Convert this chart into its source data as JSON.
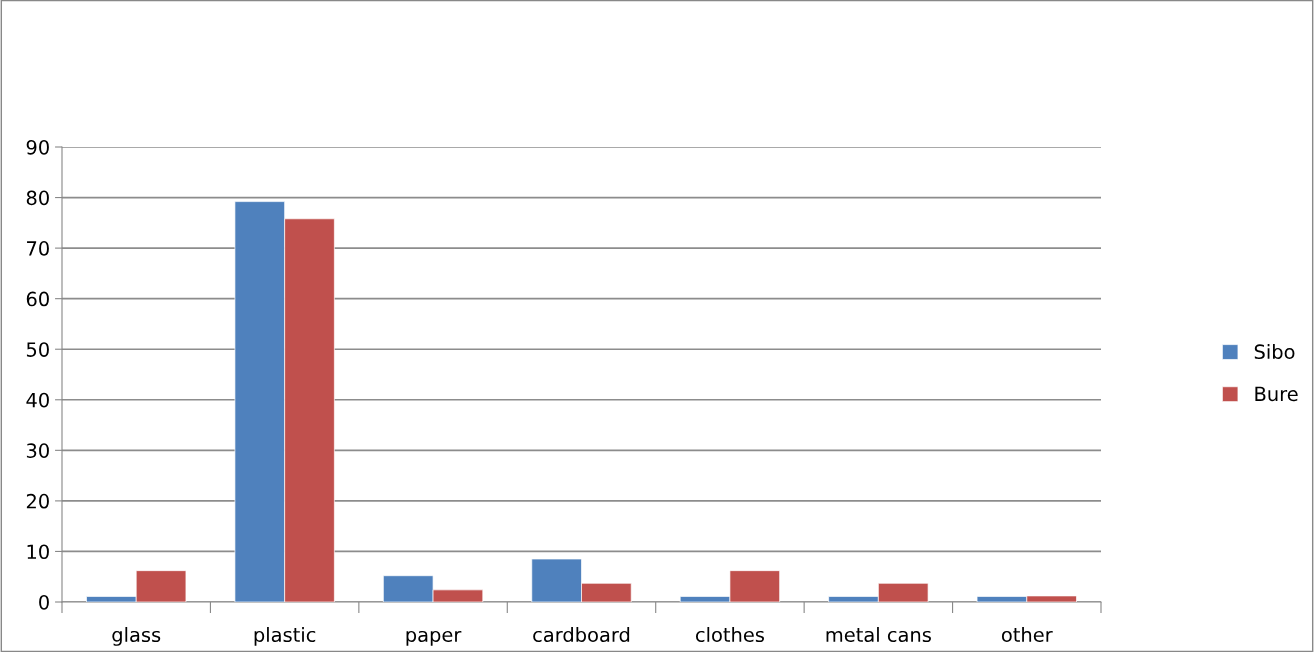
{
  "chart_data": {
    "type": "bar",
    "categories": [
      "glass",
      "plastic",
      "paper",
      "cardboard",
      "clothes",
      "metal cans",
      "other"
    ],
    "series": [
      {
        "name": "Sibo",
        "color": "#4f81bd",
        "values": [
          1.1,
          79.2,
          5.2,
          8.5,
          1.1,
          1.1,
          1.1
        ]
      },
      {
        "name": "Bure",
        "color": "#c0504d",
        "values": [
          6.2,
          75.8,
          2.4,
          3.7,
          6.2,
          3.7,
          1.2
        ]
      }
    ],
    "ylim": [
      0,
      90
    ],
    "yticks": [
      0,
      10,
      20,
      30,
      40,
      50,
      60,
      70,
      80,
      90
    ],
    "grid": "y",
    "legend": "right"
  }
}
